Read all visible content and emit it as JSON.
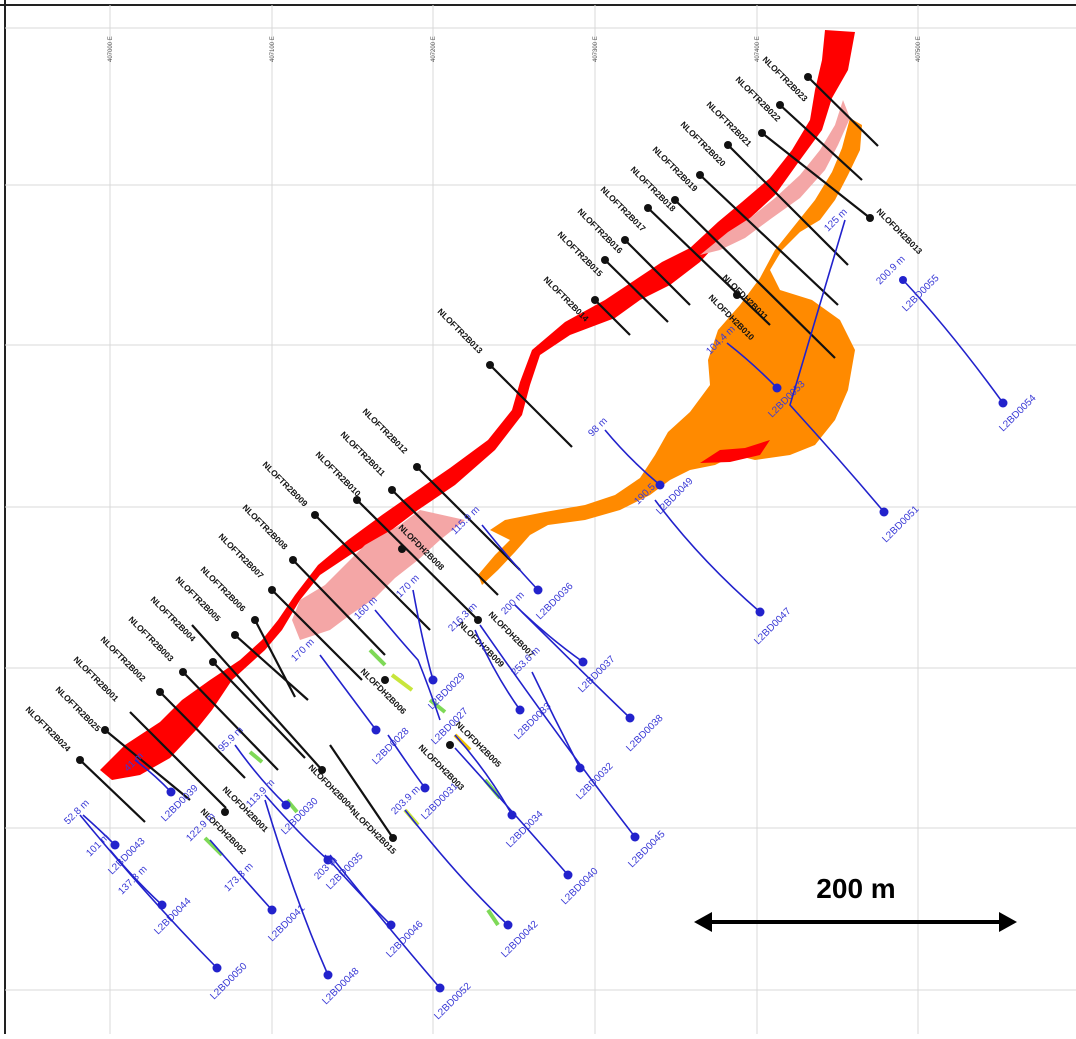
{
  "map": {
    "scale_bar": {
      "label": "200 m"
    },
    "eastings": [
      {
        "label": "407000 E"
      },
      {
        "label": "407100 E"
      },
      {
        "label": "407200 E"
      },
      {
        "label": "407300 E"
      },
      {
        "label": "407400 E"
      },
      {
        "label": "407500 E"
      }
    ],
    "black_holes": [
      {
        "label": "NLOFTR2B023"
      },
      {
        "label": "NLOFTR2B022"
      },
      {
        "label": "NLOFTR2B021"
      },
      {
        "label": "NLOFTR2B020"
      },
      {
        "label": "NLOFTR2B019"
      },
      {
        "label": "NLOFTR2B018"
      },
      {
        "label": "NLOFTR2B017"
      },
      {
        "label": "NLOFTR2B016"
      },
      {
        "label": "NLOFTR2B015"
      },
      {
        "label": "NLOFTR2B014"
      },
      {
        "label": "NLOFTR2B013"
      },
      {
        "label": "NLOFTR2B012"
      },
      {
        "label": "NLOFTR2B011"
      },
      {
        "label": "NLOFTR2B010"
      },
      {
        "label": "NLOFTR2B009"
      },
      {
        "label": "NLOFTR2B008"
      },
      {
        "label": "NLOFTR2B007"
      },
      {
        "label": "NLOFTR2B006"
      },
      {
        "label": "NLOFTR2B005"
      },
      {
        "label": "NLOFTR2B004"
      },
      {
        "label": "NLOFTR2B003"
      },
      {
        "label": "NLOFTR2B002"
      },
      {
        "label": "NLOFTR2B001"
      },
      {
        "label": "NLOFTR2B025"
      },
      {
        "label": "NLOFTR2B024"
      }
    ],
    "dh_holes": [
      {
        "label": "NLOFDH2B013"
      },
      {
        "label": "NLOFDH2B011"
      },
      {
        "label": "NLOFDH2B010"
      },
      {
        "label": "NLOFDH2B008"
      },
      {
        "label": "NLOFDH2B007"
      },
      {
        "label": "NLOFDH2B009"
      },
      {
        "label": "NLOFDH2B006"
      },
      {
        "label": "NLOFDH2B005"
      },
      {
        "label": "NLOFDH2B004"
      },
      {
        "label": "NLOFDH2B003"
      },
      {
        "label": "NLOFDH2B002"
      },
      {
        "label": "NLOFDH2B001"
      },
      {
        "label": "NLOFDH2B015"
      }
    ],
    "blue_holes": [
      {
        "label": "L2BD0055",
        "depth": "200.9 m"
      },
      {
        "label": "L2BD0054",
        "depth": ""
      },
      {
        "label": "L2BD0053",
        "depth": "104.4 m"
      },
      {
        "label": "L2BD0051",
        "depth": "125 m"
      },
      {
        "label": "L2BD0049",
        "depth": "98 m"
      },
      {
        "label": "L2BD0047",
        "depth": "190.5"
      },
      {
        "label": "L2BD0036",
        "depth": "115.9 m"
      },
      {
        "label": "L2BD0037",
        "depth": "200 m"
      },
      {
        "label": "L2BD0038",
        "depth": ""
      },
      {
        "label": "L2BD0033",
        "depth": "216.3 m"
      },
      {
        "label": "L2BD0032",
        "depth": "253.6 m"
      },
      {
        "label": "L2BD0045",
        "depth": ""
      },
      {
        "label": "L2BD0029",
        "depth": "170 m"
      },
      {
        "label": "L2BD0028",
        "depth": "170 m"
      },
      {
        "label": "L2BD0027",
        "depth": "160 m"
      },
      {
        "label": "L2BD0034",
        "depth": ""
      },
      {
        "label": "L2BD0031",
        "depth": ""
      },
      {
        "label": "L2BD0040",
        "depth": ""
      },
      {
        "label": "L2BD0039",
        "depth": "41 m"
      },
      {
        "label": "L2BD0030",
        "depth": "95.9 m"
      },
      {
        "label": "L2BD0035",
        "depth": "113.9 m"
      },
      {
        "label": "L2BD0043",
        "depth": "101 m"
      },
      {
        "label": "L2BD0044",
        "depth": "137.3 m"
      },
      {
        "label": "L2BD0050",
        "depth": "52.8 m"
      },
      {
        "label": "L2BD0041",
        "depth": "173.3 m"
      },
      {
        "label": "L2BD0048",
        "depth": "203 m"
      },
      {
        "label": "L2BD0046",
        "depth": "203.9 m"
      },
      {
        "label": "L2BD0042",
        "depth": ""
      },
      {
        "label": "L2BD0052",
        "depth": "122.9 m"
      }
    ],
    "colors": {
      "red_zone": "#ff0000",
      "pink_zone": "#f4a6a6",
      "orange_zone": "#ff8a00",
      "black_holes": "#111111",
      "blue_holes": "#2222cc",
      "grid": "#d9d9d9"
    }
  }
}
